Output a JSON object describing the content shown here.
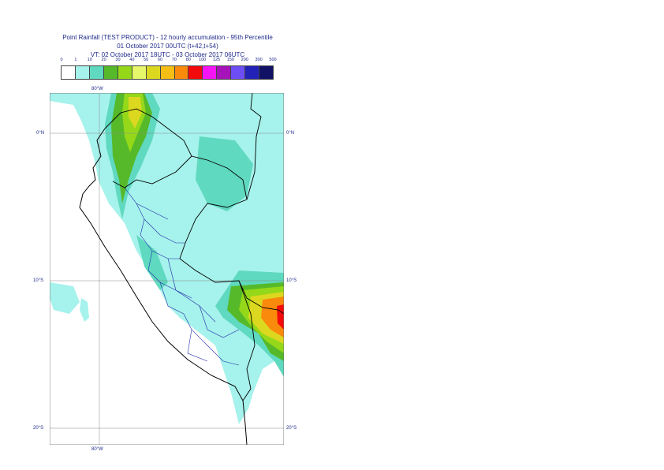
{
  "title": {
    "line1": "Point Rainfall (TEST PRODUCT) - 12 hourly accumulation - 95th Percentile",
    "line2": "01 October 2017 00UTC (t+42,t+54)",
    "line3": "VT: 02 October 2017 18UTC - 03 October 2017 06UTC"
  },
  "legend": {
    "labels": [
      "0",
      "1",
      "10",
      "20",
      "30",
      "40",
      "50",
      "60",
      "70",
      "80",
      "100",
      "125",
      "150",
      "200",
      "300",
      "500"
    ],
    "colors": [
      "#ffffff",
      "#a6f2ec",
      "#5fd9bf",
      "#56b929",
      "#95d81a",
      "#e6f76a",
      "#dcd81f",
      "#f5be14",
      "#fa8a0c",
      "#f30a0a",
      "#f414f4",
      "#a614b9",
      "#6d4ef5",
      "#2222b8",
      "#111166"
    ]
  },
  "axes": {
    "lat_top": "0°N",
    "lat_mid": "10°S",
    "lat_bot": "20°S",
    "lon_top": "80°W",
    "lon_bot": "80°W"
  }
}
